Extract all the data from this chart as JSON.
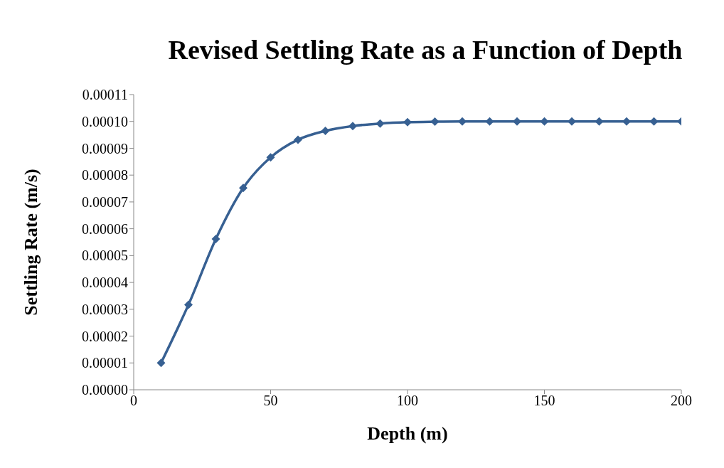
{
  "chart_data": {
    "type": "line",
    "title": "Revised Settling Rate as a Function of Depth",
    "xlabel": "Depth (m)",
    "ylabel": "Settling Rate  (m/s)",
    "x": [
      10,
      20,
      30,
      40,
      50,
      60,
      70,
      80,
      90,
      100,
      110,
      120,
      130,
      140,
      150,
      160,
      170,
      180,
      190,
      200
    ],
    "series": [
      {
        "color": "#376092",
        "values": [
          1e-05,
          3.17e-05,
          5.62e-05,
          7.52e-05,
          8.66e-05,
          9.32e-05,
          9.65e-05,
          9.83e-05,
          9.92e-05,
          9.97e-05,
          9.99e-05,
          0.0001,
          0.0001,
          0.0001,
          0.0001,
          0.0001,
          0.0001,
          0.0001,
          0.0001,
          0.0001
        ]
      }
    ],
    "xlim": [
      0,
      200
    ],
    "xticks": [
      0,
      50,
      100,
      150,
      200
    ],
    "ylim": [
      0,
      0.00011
    ],
    "yticks": [
      {
        "value": 0,
        "label": "0.00000"
      },
      {
        "value": 1e-05,
        "label": "0.00001"
      },
      {
        "value": 2e-05,
        "label": "0.00002"
      },
      {
        "value": 3e-05,
        "label": "0.00003"
      },
      {
        "value": 4e-05,
        "label": "0.00004"
      },
      {
        "value": 5e-05,
        "label": "0.00005"
      },
      {
        "value": 6e-05,
        "label": "0.00006"
      },
      {
        "value": 7e-05,
        "label": "0.00007"
      },
      {
        "value": 8e-05,
        "label": "0.00008"
      },
      {
        "value": 9e-05,
        "label": "0.00009"
      },
      {
        "value": 0.0001,
        "label": "0.00010"
      },
      {
        "value": 0.00011,
        "label": "0.00011"
      }
    ],
    "grid": false,
    "legend": false,
    "marker": "diamond",
    "line_style": "solid"
  }
}
